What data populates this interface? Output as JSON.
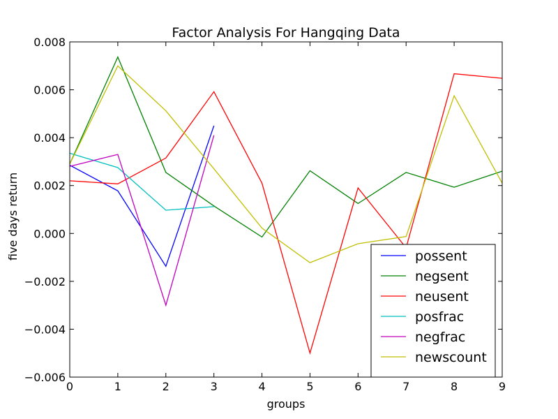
{
  "chart_data": {
    "type": "line",
    "title": "Factor Analysis For Hangqing Data",
    "xlabel": "groups",
    "ylabel": "five days return",
    "xlim": [
      0,
      9
    ],
    "ylim": [
      -0.006,
      0.008
    ],
    "x_ticks": [
      "0",
      "1",
      "2",
      "3",
      "4",
      "5",
      "6",
      "7",
      "8",
      "9"
    ],
    "y_ticks": [
      "−0.006",
      "−0.004",
      "−0.002",
      "0.000",
      "0.002",
      "0.004",
      "0.006",
      "0.008"
    ],
    "y_tick_values": [
      -0.006,
      -0.004,
      -0.002,
      0.0,
      0.002,
      0.004,
      0.006,
      0.008
    ],
    "grid": false,
    "legend_position": "lower-right",
    "series": [
      {
        "name": "possent",
        "color": "#0000ff",
        "x": [
          0,
          1,
          2,
          3
        ],
        "values": [
          0.00285,
          0.00178,
          -0.00137,
          0.0045
        ]
      },
      {
        "name": "negsent",
        "color": "#008000",
        "x": [
          0,
          1,
          2,
          3,
          4,
          5,
          6,
          7,
          8,
          9
        ],
        "values": [
          0.0029,
          0.00737,
          0.00255,
          0.00115,
          -0.00015,
          0.00262,
          0.00125,
          0.00255,
          0.00193,
          0.0026
        ]
      },
      {
        "name": "neusent",
        "color": "#ff0000",
        "x": [
          0,
          1,
          2,
          3,
          4,
          5,
          6,
          7,
          8,
          9
        ],
        "values": [
          0.0022,
          0.00207,
          0.00315,
          0.00592,
          0.0021,
          -0.005,
          0.0019,
          -0.0006,
          0.00667,
          0.00648
        ]
      },
      {
        "name": "posfrac",
        "color": "#00bfbf",
        "x": [
          0,
          1,
          2,
          3
        ],
        "values": [
          0.00335,
          0.00275,
          0.00097,
          0.00112
        ]
      },
      {
        "name": "negfrac",
        "color": "#bf00bf",
        "x": [
          0,
          1,
          2,
          3
        ],
        "values": [
          0.0028,
          0.0033,
          -0.003,
          0.0041
        ]
      },
      {
        "name": "newscount",
        "color": "#bfbf00",
        "x": [
          0,
          1,
          2,
          3,
          4,
          5,
          6,
          7,
          8,
          9
        ],
        "values": [
          0.0029,
          0.007,
          0.00512,
          0.0027,
          0.00022,
          -0.00122,
          -0.00043,
          -0.00013,
          0.00575,
          0.0021
        ]
      }
    ]
  }
}
